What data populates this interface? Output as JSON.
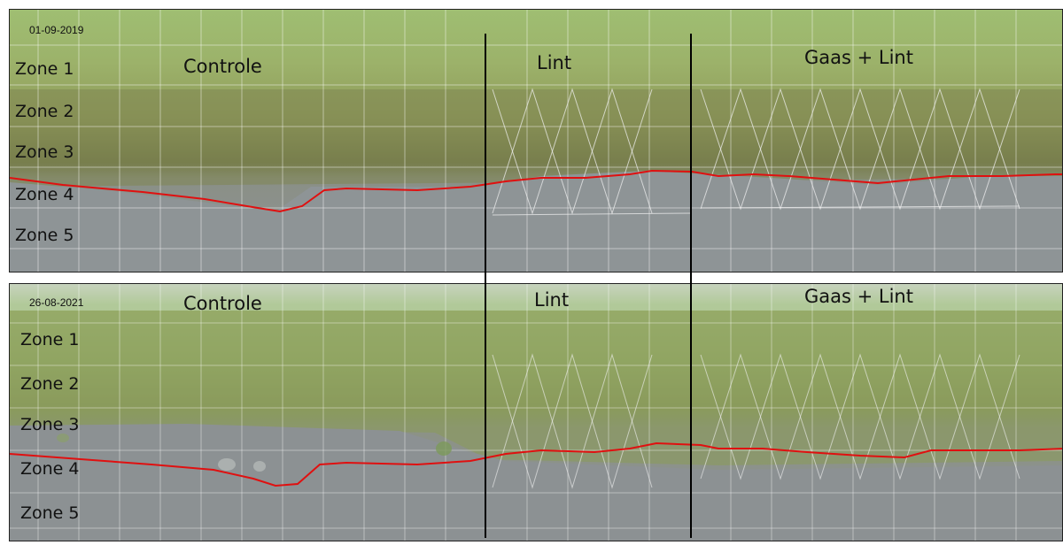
{
  "top": {
    "date": "01-09-2019",
    "sections": {
      "controle": "Controle",
      "lint": "Lint",
      "gaas_lint": "Gaas + Lint"
    },
    "zones": [
      "Zone 1",
      "Zone 2",
      "Zone 3",
      "Zone 4",
      "Zone 5"
    ]
  },
  "bottom": {
    "date": "26-08-2021",
    "sections": {
      "controle": "Controle",
      "lint": "Lint",
      "gaas_lint": "Gaas + Lint"
    },
    "zones": [
      "Zone 1",
      "Zone 2",
      "Zone 3",
      "Zone 4",
      "Zone 5"
    ]
  },
  "colors": {
    "grass_light": "#a8c47a",
    "grass_dark": "#7f8f4e",
    "vegetation": "#6e7a45",
    "water": "#8c9294",
    "shoreline": "#e01010",
    "grid": "#ffffff",
    "divider": "#000000"
  }
}
